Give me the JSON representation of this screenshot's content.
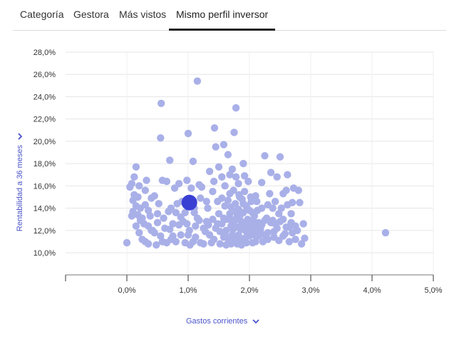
{
  "tabs": [
    {
      "label": "Categoría"
    },
    {
      "label": "Gestora"
    },
    {
      "label": "Más vistos"
    },
    {
      "label": "Mismo perfil inversor"
    }
  ],
  "active_tab_index": 3,
  "axis_selectors": {
    "y_label": "Rentabilidad a 36 meses",
    "x_label": "Gastos corrientes",
    "icon": "chevron-down-icon"
  },
  "colors": {
    "point": "#a9b0e8",
    "highlight": "#3a3fd4",
    "axis_label": "#4b55c8",
    "grid": "#e6e6e6"
  },
  "chart_data": {
    "type": "scatter",
    "xlabel": "Gastos corrientes",
    "ylabel": "Rentabilidad a 36 meses",
    "x_ticks": [
      "0,0%",
      "1,0%",
      "2,0%",
      "3,0%",
      "4,0%",
      "5,0%"
    ],
    "y_ticks": [
      "10,0%",
      "12,0%",
      "14,0%",
      "16,0%",
      "18,0%",
      "20,0%",
      "22,0%",
      "24,0%",
      "26,0%",
      "28,0%"
    ],
    "xlim": [
      -1.0,
      5.0
    ],
    "ylim": [
      8.0,
      28.0
    ],
    "grid": true,
    "highlight": {
      "x": 1.02,
      "y": 14.5
    },
    "points": [
      [
        0.0,
        10.9
      ],
      [
        0.08,
        16.2
      ],
      [
        0.12,
        16.8
      ],
      [
        0.15,
        17.7
      ],
      [
        0.12,
        15.2
      ],
      [
        0.15,
        14.2
      ],
      [
        0.18,
        13.4
      ],
      [
        0.2,
        16.0
      ],
      [
        0.22,
        12.9
      ],
      [
        0.25,
        11.2
      ],
      [
        0.3,
        15.6
      ],
      [
        0.32,
        16.5
      ],
      [
        0.3,
        14.3
      ],
      [
        0.35,
        13.8
      ],
      [
        0.35,
        10.8
      ],
      [
        0.4,
        12.0
      ],
      [
        0.45,
        15.1
      ],
      [
        0.5,
        13.5
      ],
      [
        0.55,
        11.5
      ],
      [
        0.58,
        16.5
      ],
      [
        0.55,
        20.3
      ],
      [
        0.56,
        23.4
      ],
      [
        0.65,
        16.4
      ],
      [
        0.7,
        18.3
      ],
      [
        0.72,
        14.0
      ],
      [
        0.75,
        12.6
      ],
      [
        0.78,
        15.8
      ],
      [
        0.8,
        11.0
      ],
      [
        0.85,
        16.2
      ],
      [
        0.88,
        13.2
      ],
      [
        0.9,
        14.6
      ],
      [
        0.95,
        10.9
      ],
      [
        0.98,
        16.5
      ],
      [
        1.0,
        20.7
      ],
      [
        1.02,
        12.0
      ],
      [
        1.08,
        18.2
      ],
      [
        1.1,
        13.6
      ],
      [
        1.15,
        25.4
      ],
      [
        1.12,
        11.4
      ],
      [
        1.18,
        16.1
      ],
      [
        1.2,
        14.9
      ],
      [
        1.25,
        10.8
      ],
      [
        1.3,
        12.8
      ],
      [
        1.35,
        17.3
      ],
      [
        1.4,
        15.5
      ],
      [
        1.43,
        21.2
      ],
      [
        1.45,
        19.5
      ],
      [
        1.5,
        13.5
      ],
      [
        1.52,
        11.9
      ],
      [
        1.55,
        16.8
      ],
      [
        1.58,
        19.7
      ],
      [
        1.6,
        14.2
      ],
      [
        1.62,
        10.7
      ],
      [
        1.65,
        18.8
      ],
      [
        1.68,
        15.3
      ],
      [
        1.7,
        12.4
      ],
      [
        1.72,
        17.5
      ],
      [
        1.75,
        20.8
      ],
      [
        1.78,
        23.0
      ],
      [
        1.8,
        13.3
      ],
      [
        1.82,
        16.2
      ],
      [
        1.85,
        11.1
      ],
      [
        1.88,
        14.8
      ],
      [
        1.9,
        18.0
      ],
      [
        1.92,
        15.5
      ],
      [
        1.95,
        12.2
      ],
      [
        1.98,
        16.4
      ],
      [
        2.0,
        13.8
      ],
      [
        2.05,
        10.9
      ],
      [
        2.1,
        15.1
      ],
      [
        2.15,
        12.7
      ],
      [
        2.2,
        16.3
      ],
      [
        2.25,
        18.7
      ],
      [
        2.3,
        14.3
      ],
      [
        2.35,
        17.2
      ],
      [
        2.4,
        11.9
      ],
      [
        2.45,
        16.8
      ],
      [
        2.5,
        18.6
      ],
      [
        2.55,
        13.0
      ],
      [
        2.6,
        15.6
      ],
      [
        2.62,
        17.0
      ],
      [
        2.65,
        12.3
      ],
      [
        2.7,
        14.5
      ],
      [
        2.75,
        11.2
      ],
      [
        2.8,
        15.6
      ],
      [
        2.85,
        10.8
      ],
      [
        2.88,
        12.6
      ],
      [
        2.9,
        11.3
      ],
      [
        4.22,
        11.8
      ],
      [
        0.05,
        15.9
      ],
      [
        0.1,
        14.7
      ],
      [
        0.2,
        11.8
      ],
      [
        0.28,
        12.6
      ],
      [
        0.4,
        14.9
      ],
      [
        0.48,
        10.7
      ],
      [
        0.6,
        13.1
      ],
      [
        0.65,
        10.9
      ],
      [
        0.7,
        12.1
      ],
      [
        0.82,
        14.4
      ],
      [
        0.92,
        12.8
      ],
      [
        1.05,
        15.8
      ],
      [
        1.08,
        11.0
      ],
      [
        1.15,
        13.1
      ],
      [
        1.22,
        15.9
      ],
      [
        1.28,
        11.9
      ],
      [
        1.32,
        14.0
      ],
      [
        1.38,
        10.9
      ],
      [
        1.42,
        16.4
      ],
      [
        1.48,
        12.6
      ],
      [
        1.5,
        17.7
      ],
      [
        1.55,
        14.9
      ],
      [
        1.58,
        11.4
      ],
      [
        1.6,
        16.0
      ],
      [
        1.63,
        13.0
      ],
      [
        1.66,
        10.9
      ],
      [
        1.68,
        17.0
      ],
      [
        1.7,
        14.1
      ],
      [
        1.72,
        11.6
      ],
      [
        1.74,
        15.6
      ],
      [
        1.76,
        12.9
      ],
      [
        1.78,
        16.8
      ],
      [
        1.8,
        10.8
      ],
      [
        1.82,
        13.9
      ],
      [
        1.84,
        15.0
      ],
      [
        1.86,
        12.1
      ],
      [
        1.88,
        11.0
      ],
      [
        1.9,
        13.6
      ],
      [
        1.92,
        16.9
      ],
      [
        1.95,
        14.2
      ],
      [
        1.97,
        11.7
      ],
      [
        2.0,
        12.9
      ],
      [
        2.02,
        15.0
      ],
      [
        2.05,
        13.6
      ],
      [
        2.08,
        11.6
      ],
      [
        2.12,
        14.6
      ],
      [
        2.18,
        12.1
      ],
      [
        2.22,
        11.0
      ],
      [
        2.28,
        13.1
      ],
      [
        2.33,
        15.3
      ],
      [
        2.38,
        12.9
      ],
      [
        2.42,
        14.6
      ],
      [
        2.48,
        11.1
      ],
      [
        2.52,
        14.0
      ],
      [
        2.58,
        11.7
      ],
      [
        2.68,
        13.5
      ],
      [
        2.72,
        15.8
      ],
      [
        2.78,
        12.0
      ],
      [
        2.82,
        14.5
      ],
      [
        0.08,
        13.3
      ],
      [
        0.18,
        15.0
      ],
      [
        0.25,
        13.1
      ],
      [
        0.35,
        12.4
      ],
      [
        0.45,
        11.8
      ],
      [
        0.52,
        14.4
      ],
      [
        0.62,
        12.2
      ],
      [
        0.72,
        11.2
      ],
      [
        0.85,
        12.5
      ],
      [
        0.95,
        13.6
      ],
      [
        1.0,
        11.6
      ],
      [
        1.12,
        12.4
      ],
      [
        1.25,
        12.2
      ],
      [
        1.35,
        11.6
      ],
      [
        1.45,
        12.2
      ],
      [
        1.52,
        10.8
      ],
      [
        1.58,
        13.1
      ],
      [
        1.62,
        12.0
      ],
      [
        1.65,
        11.3
      ],
      [
        1.68,
        13.5
      ],
      [
        1.7,
        10.8
      ],
      [
        1.72,
        12.7
      ],
      [
        1.75,
        11.1
      ],
      [
        1.78,
        13.7
      ],
      [
        1.8,
        12.3
      ],
      [
        1.82,
        11.6
      ],
      [
        1.85,
        12.9
      ],
      [
        1.87,
        10.7
      ],
      [
        1.9,
        12.5
      ],
      [
        1.92,
        11.3
      ],
      [
        1.95,
        10.9
      ],
      [
        1.97,
        13.0
      ],
      [
        2.0,
        11.5
      ],
      [
        2.02,
        12.2
      ],
      [
        2.05,
        11.9
      ],
      [
        2.08,
        13.3
      ],
      [
        2.1,
        11.0
      ],
      [
        2.15,
        11.5
      ],
      [
        2.2,
        12.5
      ],
      [
        2.25,
        11.6
      ],
      [
        2.3,
        11.2
      ],
      [
        2.35,
        12.7
      ],
      [
        2.4,
        11.4
      ],
      [
        2.45,
        12.2
      ],
      [
        2.5,
        12.8
      ],
      [
        2.55,
        11.5
      ],
      [
        2.6,
        12.3
      ],
      [
        2.65,
        11.0
      ],
      [
        2.7,
        11.8
      ],
      [
        2.75,
        12.4
      ],
      [
        0.1,
        13.7
      ],
      [
        0.15,
        12.4
      ],
      [
        0.22,
        14.0
      ],
      [
        0.3,
        11.0
      ],
      [
        0.38,
        13.3
      ],
      [
        0.42,
        12.0
      ],
      [
        0.5,
        12.7
      ],
      [
        0.58,
        11.0
      ],
      [
        0.68,
        13.7
      ],
      [
        0.75,
        11.5
      ],
      [
        0.8,
        13.6
      ],
      [
        0.88,
        11.6
      ],
      [
        0.98,
        12.6
      ],
      [
        1.03,
        10.7
      ],
      [
        1.1,
        14.0
      ],
      [
        1.18,
        12.9
      ],
      [
        1.2,
        10.9
      ],
      [
        1.3,
        14.6
      ],
      [
        1.33,
        12.5
      ],
      [
        1.4,
        13.0
      ],
      [
        1.42,
        11.2
      ],
      [
        1.48,
        14.6
      ],
      [
        1.55,
        12.6
      ],
      [
        1.6,
        11.7
      ],
      [
        1.65,
        14.7
      ],
      [
        1.7,
        13.0
      ],
      [
        1.73,
        12.1
      ],
      [
        1.77,
        14.4
      ],
      [
        1.8,
        11.4
      ],
      [
        1.83,
        15.2
      ],
      [
        1.85,
        13.4
      ],
      [
        1.88,
        12.7
      ],
      [
        1.9,
        14.4
      ],
      [
        1.93,
        12.0
      ],
      [
        1.96,
        14.0
      ],
      [
        2.0,
        12.5
      ],
      [
        2.03,
        14.6
      ],
      [
        2.07,
        12.8
      ],
      [
        2.1,
        12.3
      ],
      [
        2.13,
        13.8
      ],
      [
        2.17,
        11.9
      ],
      [
        2.2,
        14.0
      ],
      [
        2.25,
        12.9
      ],
      [
        2.3,
        11.8
      ],
      [
        2.38,
        14.0
      ],
      [
        2.42,
        12.6
      ],
      [
        2.48,
        13.5
      ],
      [
        2.55,
        15.3
      ],
      [
        2.62,
        14.3
      ],
      [
        2.68,
        12.7
      ]
    ]
  }
}
